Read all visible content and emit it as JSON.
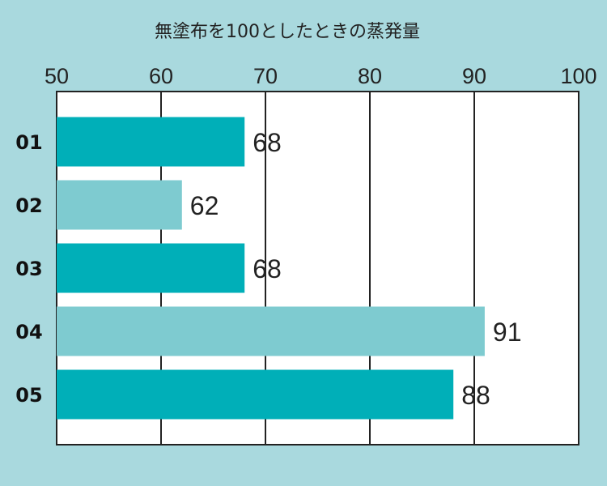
{
  "chart_data": {
    "type": "bar",
    "orientation": "horizontal",
    "title": "無塗布を100としたときの蒸発量",
    "xlabel": "",
    "ylabel": "",
    "xlim": [
      50,
      100
    ],
    "x_ticks": [
      50,
      60,
      70,
      80,
      90,
      100
    ],
    "categories": [
      "01",
      "02",
      "03",
      "04",
      "05"
    ],
    "values": [
      68,
      62,
      68,
      91,
      88
    ],
    "bar_colors": [
      "#00afb8",
      "#7ecbd0",
      "#00afb8",
      "#7ecbd0",
      "#00afb8"
    ],
    "grid": "vertical",
    "data_labels": true
  },
  "colors": {
    "background": "#a9d9de",
    "plot_background": "#ffffff",
    "dark_bar": "#00afb8",
    "light_bar": "#7ecbd0"
  }
}
